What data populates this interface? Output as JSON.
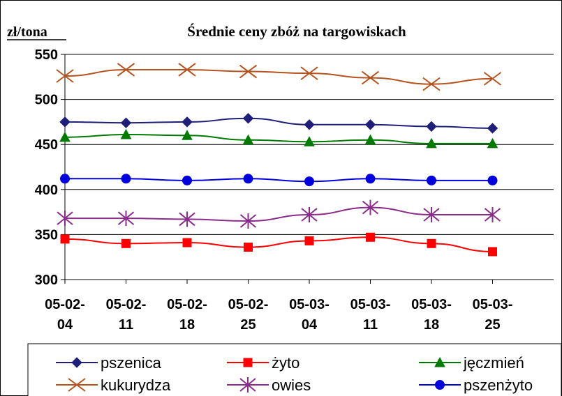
{
  "chart_data": {
    "type": "line",
    "title": "Średnie ceny zbóż na targowiskach",
    "ylabel": "zł/tona",
    "xlabel": "",
    "ylim": [
      300,
      550
    ],
    "yticks": [
      300,
      350,
      400,
      450,
      500,
      550
    ],
    "grid": "horizontal",
    "legend_placement": "bottom",
    "categories": [
      [
        "05-02-",
        "04"
      ],
      [
        "05-02-",
        "11"
      ],
      [
        "05-02-",
        "18"
      ],
      [
        "05-02-",
        "25"
      ],
      [
        "05-03-",
        "04"
      ],
      [
        "05-03-",
        "11"
      ],
      [
        "05-03-",
        "18"
      ],
      [
        "05-03-",
        "25"
      ]
    ],
    "series": [
      {
        "name": "pszenica",
        "color": "#1f1f7a",
        "marker": "diamond",
        "values": [
          475,
          474,
          475,
          479,
          472,
          472,
          470,
          468
        ]
      },
      {
        "name": "żyto",
        "color": "#ff0000",
        "marker": "square",
        "values": [
          345,
          340,
          341,
          336,
          343,
          347,
          340,
          331
        ]
      },
      {
        "name": "jęczmień",
        "color": "#007a00",
        "marker": "triangle",
        "values": [
          458,
          461,
          460,
          455,
          453,
          455,
          451,
          451
        ]
      },
      {
        "name": "kukurydza",
        "color": "#b5531f",
        "marker": "x",
        "values": [
          526,
          533,
          533,
          531,
          529,
          524,
          517,
          523
        ]
      },
      {
        "name": "owies",
        "color": "#8b2b8b",
        "marker": "asterisk",
        "values": [
          368,
          368,
          367,
          365,
          372,
          380,
          372,
          372
        ]
      },
      {
        "name": "pszenżyto",
        "color": "#0000dd",
        "marker": "circle",
        "values": [
          412,
          412,
          410,
          412,
          409,
          412,
          410,
          410
        ]
      }
    ]
  }
}
